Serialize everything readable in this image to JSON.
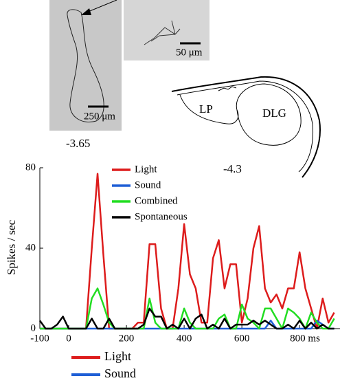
{
  "chart_data": {
    "type": "line",
    "y_label": "Spikes / sec",
    "x": [
      -100,
      -80,
      -60,
      -40,
      -20,
      0,
      20,
      40,
      60,
      80,
      100,
      120,
      140,
      160,
      180,
      200,
      220,
      240,
      260,
      280,
      300,
      320,
      340,
      360,
      380,
      400,
      420,
      440,
      460,
      480,
      500,
      520,
      540,
      560,
      580,
      600,
      620,
      640,
      660,
      680,
      700,
      720,
      740,
      760,
      780,
      800,
      820,
      840,
      860,
      880,
      900,
      920
    ],
    "series": [
      {
        "name": "Light",
        "color": "#dd1c1c",
        "values": [
          0,
          0,
          0,
          0,
          0,
          0,
          0,
          0,
          0,
          40,
          77,
          37,
          0,
          0,
          0,
          0,
          0,
          3,
          3,
          42,
          42,
          10,
          0,
          0,
          20,
          52,
          27,
          20,
          3,
          3,
          35,
          44,
          20,
          32,
          32,
          3,
          15,
          40,
          51,
          20,
          13,
          17,
          10,
          20,
          20,
          38,
          20,
          10,
          0,
          15,
          3,
          8
        ]
      },
      {
        "name": "Sound",
        "color": "#1f5fd6",
        "values": [
          0,
          0,
          0,
          0,
          0,
          0,
          0,
          0,
          0,
          0,
          0,
          0,
          0,
          0,
          0,
          0,
          0,
          0,
          0,
          0,
          0,
          0,
          0,
          0,
          0,
          0,
          0,
          0,
          0,
          0,
          0,
          0,
          0,
          0,
          0,
          0,
          0,
          0,
          0,
          0,
          4,
          0,
          0,
          0,
          0,
          0,
          0,
          0,
          4,
          2,
          0,
          0
        ]
      },
      {
        "name": "Combined",
        "color": "#22dd22",
        "values": [
          0,
          0,
          0,
          0,
          0,
          0,
          0,
          0,
          0,
          15,
          20,
          12,
          3,
          0,
          0,
          0,
          0,
          0,
          0,
          15,
          3,
          0,
          0,
          0,
          0,
          10,
          3,
          0,
          0,
          0,
          0,
          5,
          7,
          0,
          0,
          12,
          5,
          3,
          0,
          10,
          10,
          5,
          0,
          10,
          8,
          5,
          0,
          8,
          3,
          0,
          0,
          5
        ]
      },
      {
        "name": "Spontaneous",
        "color": "#000000",
        "values": [
          4,
          0,
          0,
          2,
          6,
          0,
          0,
          0,
          0,
          5,
          0,
          0,
          5,
          0,
          0,
          0,
          0,
          0,
          2,
          10,
          6,
          6,
          0,
          2,
          0,
          5,
          0,
          5,
          7,
          0,
          2,
          0,
          5,
          0,
          2,
          2,
          2,
          4,
          2,
          4,
          2,
          0,
          0,
          2,
          0,
          4,
          0,
          3,
          0,
          2,
          0,
          0
        ]
      }
    ],
    "xlim": [
      -100,
      940
    ],
    "xticks": [
      -100,
      0,
      200,
      400,
      600,
      {
        "value": 800,
        "label": "800 ms"
      }
    ],
    "ylim": [
      0,
      80
    ],
    "yticks": [
      0,
      40,
      80
    ],
    "grid": false
  },
  "figure": {
    "section_labels": [
      "-3.65",
      "-4.3"
    ],
    "scale_bars": [
      "250 μm",
      "50 μm"
    ],
    "regions": [
      "LP",
      "DLG"
    ]
  }
}
